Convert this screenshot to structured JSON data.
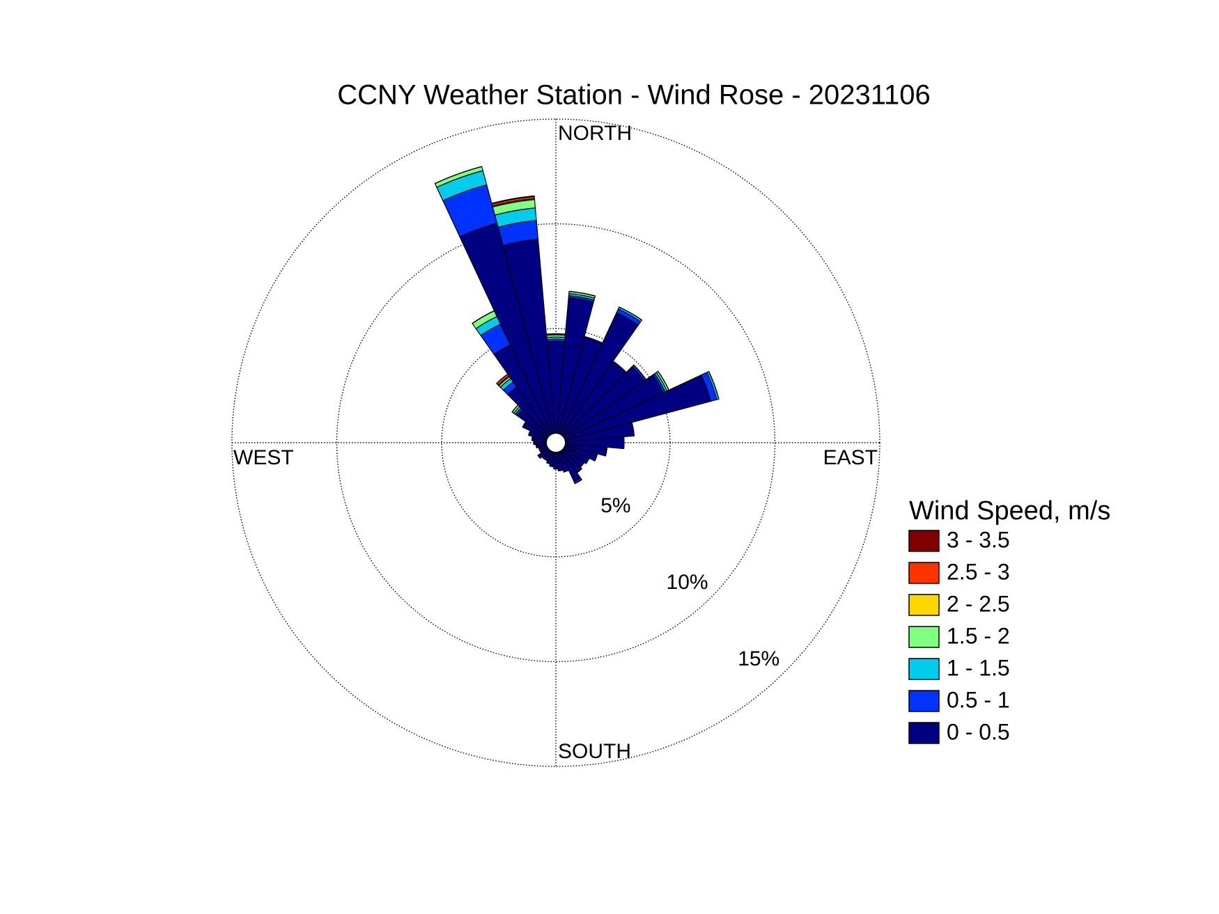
{
  "chart_data": {
    "type": "wind_rose",
    "title": "CCNY Weather Station - Wind Rose - 20231106",
    "compass_labels": {
      "north": "NORTH",
      "east": "EAST",
      "south": "SOUTH",
      "west": "WEST"
    },
    "legend_title": "Wind Speed, m/s",
    "x": [
      0,
      10,
      20,
      30,
      40,
      50,
      60,
      70,
      80,
      90,
      100,
      110,
      120,
      130,
      140,
      150,
      160,
      170,
      180,
      190,
      200,
      210,
      220,
      230,
      240,
      250,
      260,
      270,
      280,
      290,
      300,
      310,
      320,
      330,
      340,
      350
    ],
    "rlim": [
      0,
      15
    ],
    "rticks": [
      {
        "value": 5,
        "label": "5%"
      },
      {
        "value": 10,
        "label": "10%"
      },
      {
        "value": 15,
        "label": "15%"
      }
    ],
    "series": [
      {
        "name": "0 - 0.5",
        "color": "#000080",
        "values": [
          4.4,
          6.5,
          4.8,
          6.4,
          4.3,
          4.7,
          5.2,
          7.2,
          3.3,
          2.8,
          2.0,
          1.6,
          1.3,
          1.2,
          1.3,
          1.6,
          1.0,
          0.9,
          0.8,
          0.7,
          0.6,
          0.5,
          0.5,
          0.6,
          0.4,
          0.4,
          0.5,
          0.6,
          0.7,
          0.9,
          1.3,
          1.8,
          2.8,
          4.7,
          10.4,
          9.3
        ]
      },
      {
        "name": "0.5 - 1",
        "color": "#0033ff",
        "values": [
          0.1,
          0.1,
          0,
          0.2,
          0,
          0.1,
          0.1,
          0.3,
          0,
          0,
          0,
          0,
          0,
          0,
          0,
          0.1,
          0,
          0,
          0,
          0,
          0,
          0,
          0,
          0,
          0,
          0,
          0,
          0,
          0,
          0,
          0,
          0.1,
          0.3,
          1.1,
          1.9,
          0.9
        ]
      },
      {
        "name": "1 - 1.5",
        "color": "#00ccee",
        "values": [
          0.1,
          0.1,
          0,
          0.1,
          0,
          0,
          0.1,
          0.1,
          0,
          0,
          0,
          0,
          0,
          0,
          0,
          0,
          0,
          0,
          0,
          0,
          0,
          0,
          0,
          0,
          0,
          0,
          0,
          0,
          0,
          0,
          0,
          0.1,
          0.2,
          0.4,
          0.7,
          0.6
        ]
      },
      {
        "name": "1.5 - 2",
        "color": "#80ff80",
        "values": [
          0.1,
          0.1,
          0,
          0,
          0,
          0,
          0.1,
          0,
          0,
          0,
          0,
          0,
          0,
          0,
          0,
          0,
          0,
          0,
          0,
          0,
          0,
          0,
          0,
          0,
          0,
          0,
          0,
          0,
          0,
          0,
          0,
          0.1,
          0.1,
          0.3,
          0.2,
          0.4
        ]
      },
      {
        "name": "2 - 2.5",
        "color": "#ffd700",
        "values": [
          0.05,
          0,
          0,
          0,
          0,
          0,
          0,
          0,
          0,
          0,
          0,
          0,
          0,
          0,
          0,
          0,
          0,
          0,
          0,
          0,
          0,
          0,
          0,
          0,
          0,
          0,
          0,
          0,
          0,
          0,
          0,
          0,
          0.05,
          0,
          0,
          0.05
        ]
      },
      {
        "name": "2.5 - 3",
        "color": "#ff3300",
        "values": [
          0,
          0,
          0,
          0,
          0,
          0,
          0,
          0,
          0,
          0,
          0,
          0,
          0,
          0,
          0,
          0,
          0,
          0,
          0,
          0,
          0,
          0,
          0,
          0,
          0,
          0,
          0,
          0,
          0,
          0,
          0,
          0,
          0.1,
          0,
          0,
          0.1
        ]
      },
      {
        "name": "3 - 3.5",
        "color": "#800000",
        "values": [
          0,
          0,
          0,
          0,
          0,
          0,
          0,
          0,
          0,
          0,
          0,
          0,
          0,
          0,
          0,
          0,
          0,
          0,
          0,
          0,
          0,
          0,
          0,
          0,
          0,
          0,
          0,
          0,
          0,
          0,
          0,
          0,
          0,
          0,
          0,
          0.03
        ]
      }
    ]
  }
}
